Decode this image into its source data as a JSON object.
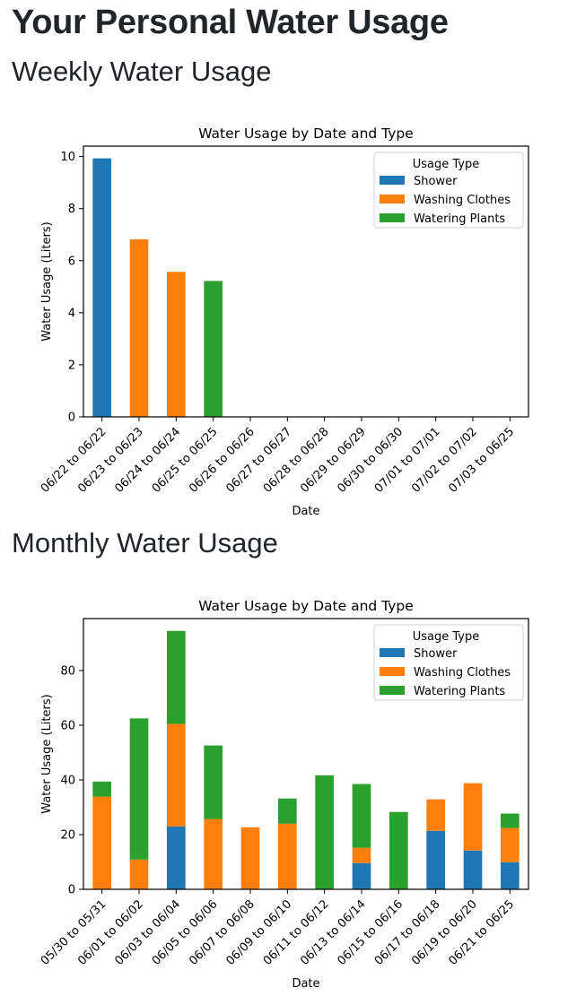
{
  "page": {
    "title": "Your Personal Water Usage",
    "sections": {
      "weekly": "Weekly Water Usage",
      "monthly": "Monthly Water Usage"
    }
  },
  "colors": {
    "Shower": "#1f77b4",
    "Washing Clothes": "#ff7f0e",
    "Watering Plants": "#2ca02c"
  },
  "chart_data": [
    {
      "id": "weekly",
      "type": "bar",
      "stacked": true,
      "title": "Water Usage by Date and Type",
      "xlabel": "Date",
      "ylabel": "Water Usage (Liters)",
      "ylim": [
        0,
        10.4
      ],
      "yticks": [
        0,
        2,
        4,
        6,
        8,
        10
      ],
      "grid": false,
      "legend": {
        "title": "Usage Type",
        "placement": "top-right"
      },
      "categories": [
        "06/22 to 06/22",
        "06/23 to 06/23",
        "06/24 to 06/24",
        "06/25 to 06/25",
        "06/26 to 06/26",
        "06/27 to 06/27",
        "06/28 to 06/28",
        "06/29 to 06/29",
        "06/30 to 06/30",
        "07/01 to 07/01",
        "07/02 to 07/02",
        "07/03 to 06/25"
      ],
      "series": [
        {
          "name": "Shower",
          "values": [
            9.93,
            0,
            0,
            0,
            0,
            0,
            0,
            0,
            0,
            0,
            0,
            0
          ]
        },
        {
          "name": "Washing Clothes",
          "values": [
            0,
            6.82,
            5.57,
            0,
            0,
            0,
            0,
            0,
            0,
            0,
            0,
            0
          ]
        },
        {
          "name": "Watering Plants",
          "values": [
            0,
            0,
            0,
            5.22,
            0,
            0,
            0,
            0,
            0,
            0,
            0,
            0
          ]
        }
      ]
    },
    {
      "id": "monthly",
      "type": "bar",
      "stacked": true,
      "title": "Water Usage by Date and Type",
      "xlabel": "Date",
      "ylabel": "Water Usage (Liters)",
      "ylim": [
        0,
        99
      ],
      "yticks": [
        0,
        20,
        40,
        60,
        80
      ],
      "grid": false,
      "legend": {
        "title": "Usage Type",
        "placement": "top-right"
      },
      "categories": [
        "05/30 to 05/31",
        "06/01 to 06/02",
        "06/03 to 06/04",
        "06/05 to 06/06",
        "06/07 to 06/08",
        "06/09 to 06/10",
        "06/11 to 06/12",
        "06/13 to 06/14",
        "06/15 to 06/16",
        "06/17 to 06/18",
        "06/19 to 06/20",
        "06/21 to 06/25"
      ],
      "series": [
        {
          "name": "Shower",
          "values": [
            0,
            0,
            23.0,
            0,
            0,
            0,
            0,
            9.6,
            0,
            21.4,
            14.2,
            9.9
          ]
        },
        {
          "name": "Washing Clothes",
          "values": [
            33.9,
            10.9,
            37.5,
            25.7,
            22.7,
            24.0,
            0,
            5.6,
            0,
            11.5,
            24.6,
            12.5
          ]
        },
        {
          "name": "Watering Plants",
          "values": [
            5.5,
            51.6,
            34.0,
            26.9,
            0,
            9.2,
            41.7,
            23.3,
            28.3,
            0,
            0,
            5.3
          ]
        }
      ]
    }
  ]
}
